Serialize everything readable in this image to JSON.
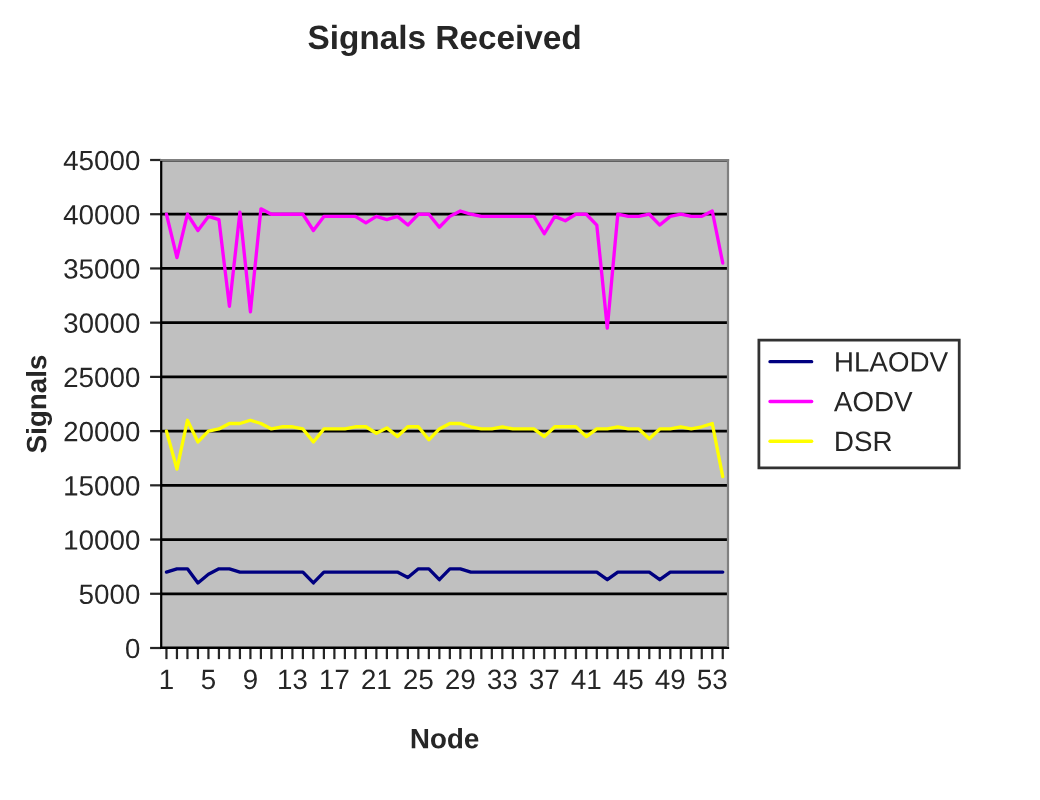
{
  "chart_data": {
    "type": "line",
    "title": "Signals Received",
    "xlabel": "Node",
    "ylabel": "Signals",
    "categories": [
      "1",
      null,
      null,
      null,
      "5",
      null,
      null,
      null,
      "9",
      null,
      null,
      null,
      "13",
      null,
      null,
      null,
      "17",
      null,
      null,
      null,
      "21",
      null,
      null,
      null,
      "25",
      null,
      null,
      null,
      "29",
      null,
      null,
      null,
      "33",
      null,
      null,
      null,
      "37",
      null,
      null,
      null,
      "41",
      null,
      null,
      null,
      "45",
      null,
      null,
      null,
      "49",
      null,
      null,
      null,
      "53",
      null
    ],
    "series": [
      {
        "name": "HLAODV",
        "color": "#000080",
        "values": [
          7000,
          7300,
          7300,
          6000,
          6800,
          7300,
          7300,
          7000,
          7000,
          7000,
          7000,
          7000,
          7000,
          7000,
          6000,
          7000,
          7000,
          7000,
          7000,
          7000,
          7000,
          7000,
          7000,
          6500,
          7300,
          7300,
          6300,
          7300,
          7300,
          7000,
          7000,
          7000,
          7000,
          7000,
          7000,
          7000,
          7000,
          7000,
          7000,
          7000,
          7000,
          7000,
          6300,
          7000,
          7000,
          7000,
          7000,
          6300,
          7000,
          7000,
          7000,
          7000,
          7000,
          7000
        ]
      },
      {
        "name": "AODV",
        "color": "#ff00ff",
        "values": [
          40000,
          36000,
          40000,
          38500,
          39800,
          39500,
          31500,
          40200,
          31000,
          40500,
          40000,
          40000,
          40000,
          40000,
          38500,
          39800,
          39800,
          39800,
          39800,
          39200,
          39800,
          39500,
          39800,
          39000,
          40000,
          40000,
          38800,
          39800,
          40300,
          40000,
          39800,
          39800,
          39800,
          39800,
          39800,
          39800,
          38200,
          39800,
          39400,
          40000,
          40000,
          39000,
          29500,
          40000,
          39800,
          39800,
          40000,
          39000,
          39800,
          40000,
          39800,
          39800,
          40300,
          35500
        ]
      },
      {
        "name": "DSR",
        "color": "#ffff00",
        "values": [
          20000,
          16500,
          21000,
          19000,
          20000,
          20200,
          20700,
          20700,
          21000,
          20700,
          20200,
          20400,
          20400,
          20200,
          19000,
          20200,
          20200,
          20200,
          20400,
          20400,
          19800,
          20300,
          19500,
          20400,
          20400,
          19200,
          20200,
          20700,
          20700,
          20400,
          20200,
          20200,
          20400,
          20200,
          20200,
          20200,
          19500,
          20400,
          20400,
          20400,
          19500,
          20200,
          20200,
          20400,
          20200,
          20200,
          19300,
          20200,
          20200,
          20400,
          20200,
          20400,
          20700,
          15800
        ]
      }
    ],
    "ylim": [
      0,
      45000
    ],
    "yticks": [
      0,
      5000,
      10000,
      15000,
      20000,
      25000,
      30000,
      35000,
      40000,
      45000
    ],
    "grid": "y",
    "legend": "right",
    "marker": "none",
    "line_style": "solid"
  }
}
